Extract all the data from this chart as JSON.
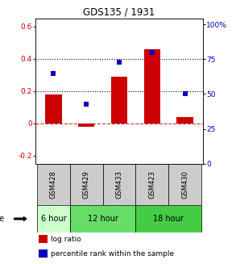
{
  "title": "GDS135 / 1931",
  "samples": [
    "GSM428",
    "GSM429",
    "GSM433",
    "GSM423",
    "GSM430"
  ],
  "log_ratio": [
    0.18,
    -0.02,
    0.29,
    0.46,
    0.04
  ],
  "percentile_rank": [
    65,
    43,
    73,
    80,
    50
  ],
  "ylim_left": [
    -0.25,
    0.65
  ],
  "ylim_right": [
    0,
    104.17
  ],
  "yticks_left": [
    -0.2,
    0.0,
    0.2,
    0.4,
    0.6
  ],
  "ytick_labels_left": [
    "-0.2",
    "0",
    "0.2",
    "0.4",
    "0.6"
  ],
  "yticks_right": [
    0,
    25,
    50,
    75,
    100
  ],
  "ytick_labels_right": [
    "0",
    "25",
    "50",
    "75",
    "100%"
  ],
  "bar_color": "#cc0000",
  "dot_color": "#0000bb",
  "time_groups": [
    {
      "label": "6 hour",
      "samples_idx": [
        0
      ],
      "color": "#ccffcc"
    },
    {
      "label": "12 hour",
      "samples_idx": [
        1,
        2
      ],
      "color": "#66dd66"
    },
    {
      "label": "18 hour",
      "samples_idx": [
        3,
        4
      ],
      "color": "#44cc44"
    }
  ],
  "sample_bg_color": "#cccccc",
  "background_color": "#ffffff",
  "legend_log_ratio_color": "#cc0000",
  "legend_percentile_color": "#0000bb",
  "bar_width": 0.5
}
